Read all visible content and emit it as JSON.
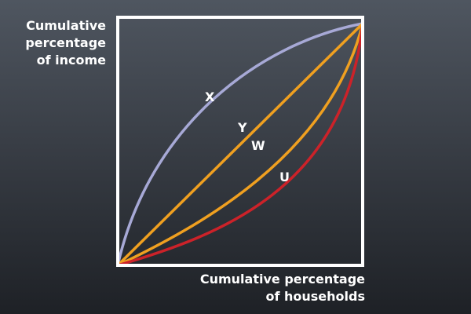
{
  "y_axis_label": [
    "Cumulative",
    "percentage",
    "of income"
  ],
  "x_axis_label": [
    "Cumulative percentage",
    "of households"
  ],
  "curves": {
    "X": {
      "label": "X",
      "color": "#a7a9d6"
    },
    "Y": {
      "label": "Y",
      "color": "#f0a020"
    },
    "W": {
      "label": "W",
      "color": "#f0a020"
    },
    "U": {
      "label": "U",
      "color": "#cc2229"
    }
  },
  "frame_color": "#ffffff"
}
